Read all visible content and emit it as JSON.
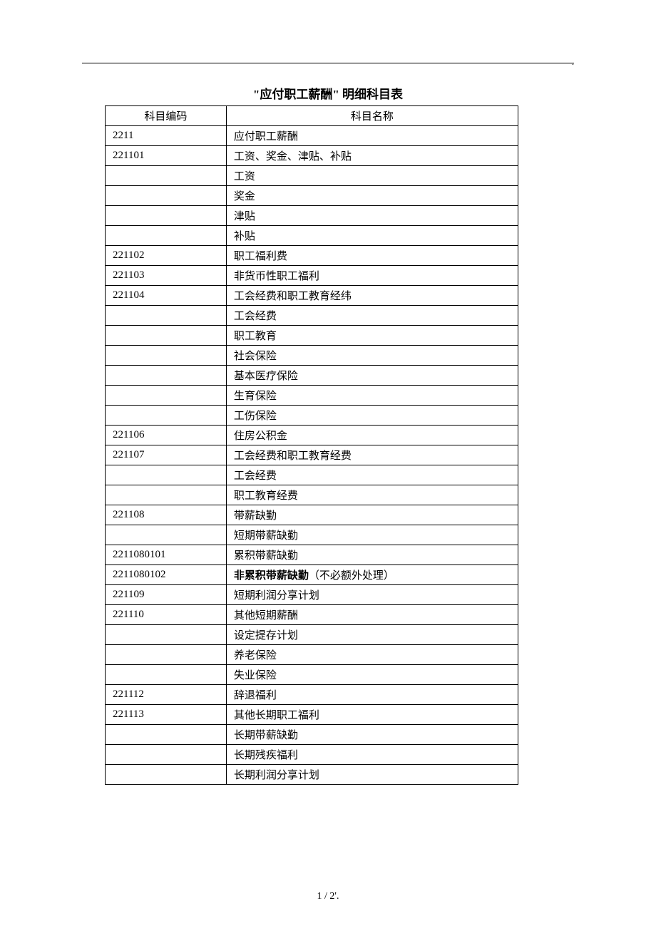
{
  "title": "\"应付职工薪酬\" 明细科目表",
  "top_dot": ".",
  "footer": "1 / 2'.",
  "table": {
    "headers": [
      "科目编码",
      "科目名称"
    ],
    "rows": [
      {
        "code": "2211",
        "name": "应付职工薪酬"
      },
      {
        "code": "221101",
        "name": "工资、奖金、津贴、补贴"
      },
      {
        "code": "",
        "name": "工资"
      },
      {
        "code": "",
        "name": "奖金"
      },
      {
        "code": "",
        "name": "津贴"
      },
      {
        "code": "",
        "name": "补贴"
      },
      {
        "code": "221102",
        "name": "职工福利费"
      },
      {
        "code": "221103",
        "name": "非货币性职工福利"
      },
      {
        "code": "221104",
        "name": "工会经费和职工教育经纬"
      },
      {
        "code": "",
        "name": "工会经费"
      },
      {
        "code": "",
        "name": "职工教育"
      },
      {
        "code": "",
        "name": "社会保险"
      },
      {
        "code": "",
        "name": "基本医疗保险"
      },
      {
        "code": "",
        "name": "生育保险"
      },
      {
        "code": "",
        "name": "工伤保险"
      },
      {
        "code": "221106",
        "name": "住房公积金"
      },
      {
        "code": "221107",
        "name": "工会经费和职工教育经费"
      },
      {
        "code": "",
        "name": "工会经费"
      },
      {
        "code": "",
        "name": "职工教育经费"
      },
      {
        "code": "221108",
        "name": "带薪缺勤"
      },
      {
        "code": "",
        "name": "短期带薪缺勤"
      },
      {
        "code": "2211080101",
        "name": "累积带薪缺勤"
      },
      {
        "code": "2211080102",
        "name_bold": "非累积带薪缺勤",
        "name_rest": "（不必额外处理）"
      },
      {
        "code": "221109",
        "name": "短期利润分享计划"
      },
      {
        "code": "221110",
        "name": "其他短期薪酬"
      },
      {
        "code": "",
        "name": "设定提存计划"
      },
      {
        "code": "",
        "name": "养老保险"
      },
      {
        "code": "",
        "name": "失业保险"
      },
      {
        "code": "221112",
        "name": "辞退福利"
      },
      {
        "code": "221113",
        "name": "其他长期职工福利"
      },
      {
        "code": "",
        "name": "长期带薪缺勤"
      },
      {
        "code": "",
        "name": "长期残疾福利"
      },
      {
        "code": "",
        "name": "长期利润分享计划"
      }
    ]
  }
}
